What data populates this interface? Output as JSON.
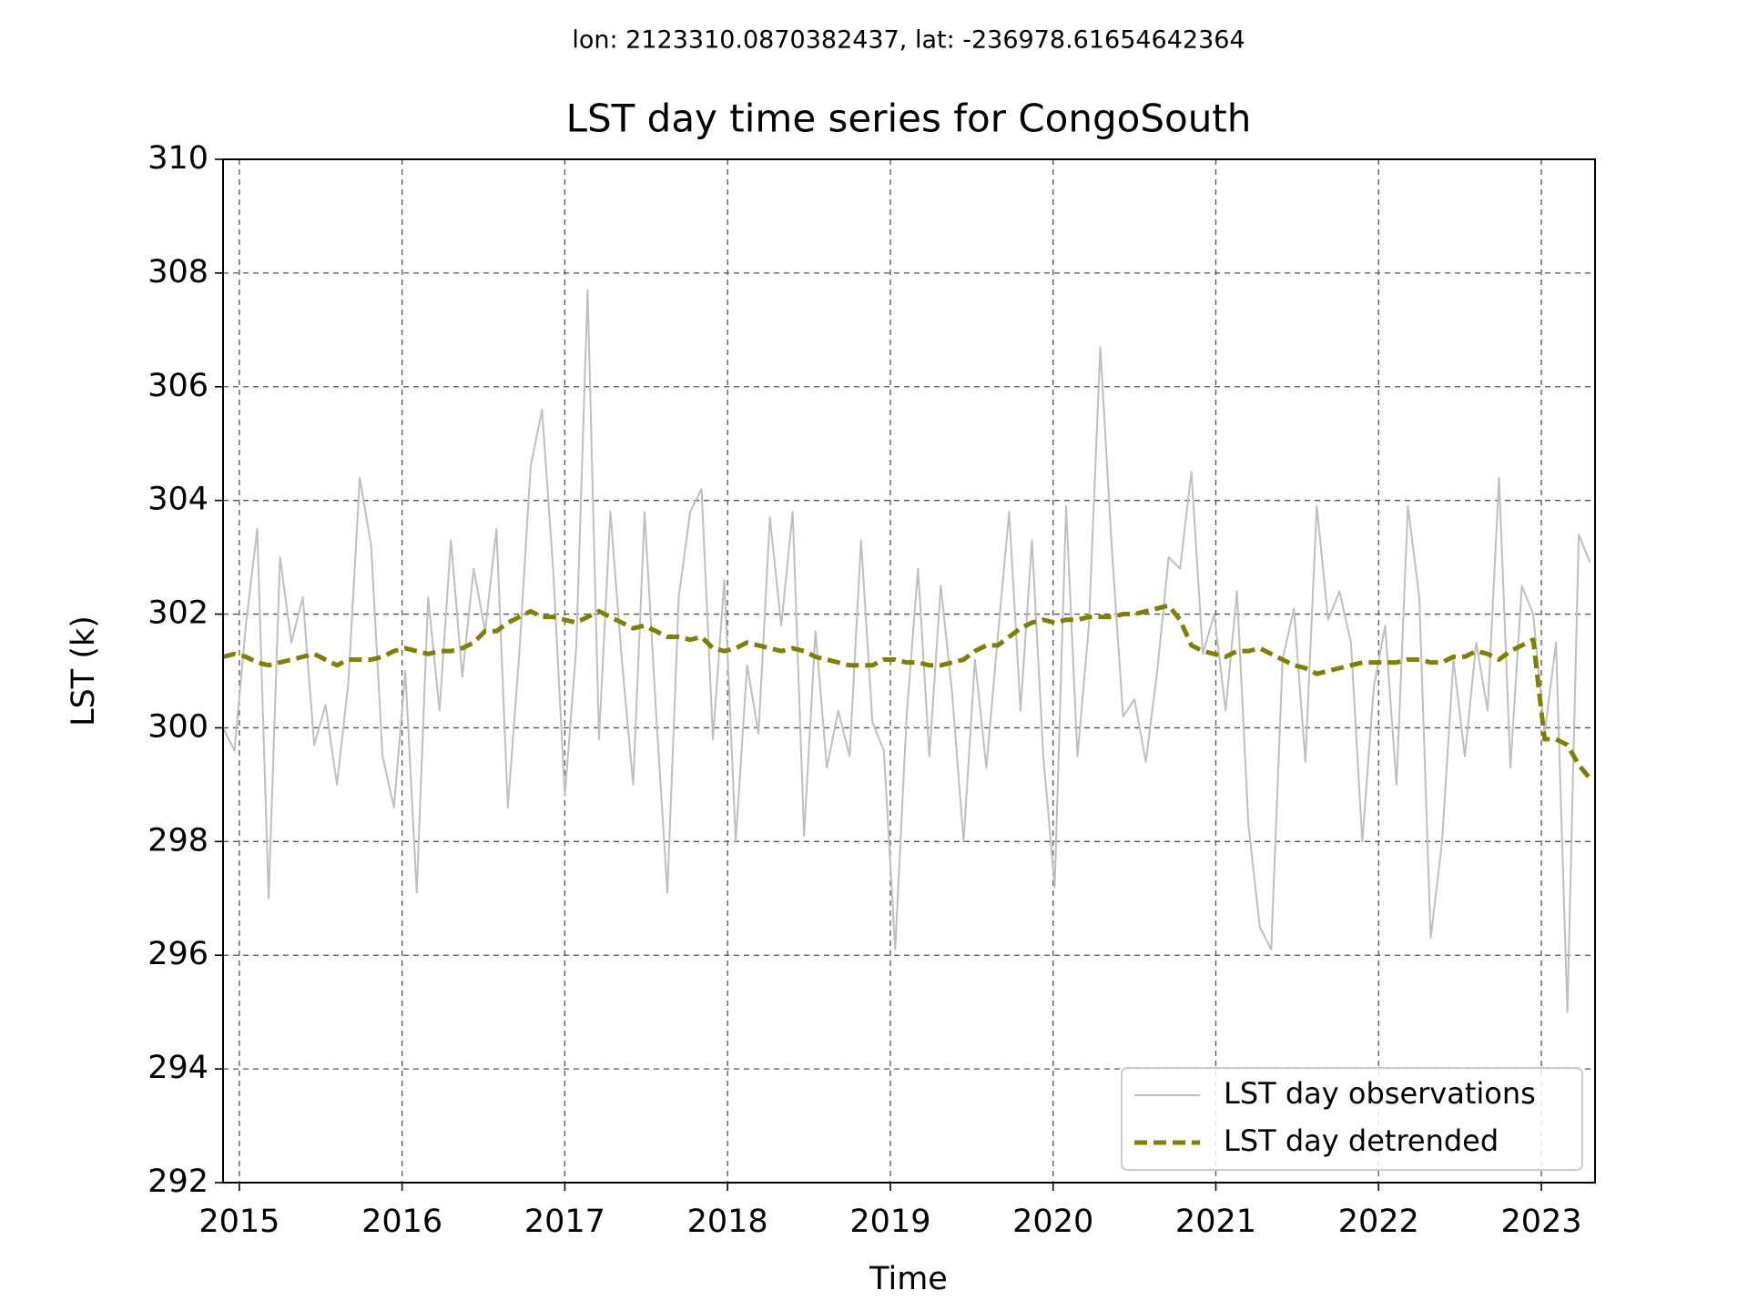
{
  "chart_data": {
    "type": "line",
    "subtitle": "lon: 2123310.0870382437, lat: -236978.61654642364",
    "title": "LST day time series for CongoSouth",
    "xlabel": "Time",
    "ylabel": "LST (k)",
    "xlim": [
      2014.9,
      2023.33
    ],
    "xticks": [
      2015,
      2016,
      2017,
      2018,
      2019,
      2020,
      2021,
      2022,
      2023
    ],
    "ylim": [
      292,
      310
    ],
    "yticks": [
      292,
      294,
      296,
      298,
      300,
      302,
      304,
      306,
      308,
      310
    ],
    "grid": true,
    "legend": "lower right",
    "x": [
      2014.9,
      2014.97,
      2015.04,
      2015.11,
      2015.18,
      2015.25,
      2015.32,
      2015.39,
      2015.46,
      2015.53,
      2015.6,
      2015.67,
      2015.74,
      2015.81,
      2015.88,
      2015.95,
      2016.02,
      2016.09,
      2016.16,
      2016.23,
      2016.3,
      2016.37,
      2016.44,
      2016.51,
      2016.58,
      2016.65,
      2016.72,
      2016.79,
      2016.86,
      2016.93,
      2017.0,
      2017.07,
      2017.14,
      2017.21,
      2017.28,
      2017.35,
      2017.42,
      2017.49,
      2017.56,
      2017.63,
      2017.7,
      2017.77,
      2017.84,
      2017.91,
      2017.98,
      2018.05,
      2018.12,
      2018.19,
      2018.26,
      2018.33,
      2018.4,
      2018.47,
      2018.54,
      2018.61,
      2018.68,
      2018.75,
      2018.82,
      2018.89,
      2018.96,
      2019.03,
      2019.1,
      2019.17,
      2019.24,
      2019.31,
      2019.38,
      2019.45,
      2019.52,
      2019.59,
      2019.66,
      2019.73,
      2019.8,
      2019.87,
      2019.94,
      2020.01,
      2020.08,
      2020.15,
      2020.22,
      2020.29,
      2020.36,
      2020.43,
      2020.5,
      2020.57,
      2020.64,
      2020.71,
      2020.78,
      2020.85,
      2020.92,
      2020.99,
      2021.06,
      2021.13,
      2021.2,
      2021.27,
      2021.34,
      2021.41,
      2021.48,
      2021.55,
      2021.62,
      2021.69,
      2021.76,
      2021.83,
      2021.9,
      2021.97,
      2022.04,
      2022.11,
      2022.18,
      2022.25,
      2022.32,
      2022.39,
      2022.46,
      2022.53,
      2022.6,
      2022.67,
      2022.74,
      2022.81,
      2022.88,
      2022.95,
      2023.02,
      2023.09,
      2023.16,
      2023.23,
      2023.3
    ],
    "series": [
      {
        "name": "LST day observations",
        "color": "#bfbfbf",
        "linestyle": "solid",
        "values": [
          300.0,
          299.6,
          301.8,
          303.5,
          297.0,
          303.0,
          301.5,
          302.3,
          299.7,
          300.4,
          299.0,
          300.8,
          304.4,
          303.2,
          299.5,
          298.6,
          301.0,
          297.1,
          302.3,
          300.3,
          303.3,
          300.9,
          302.8,
          301.7,
          303.5,
          298.6,
          301.3,
          304.6,
          305.6,
          302.7,
          298.8,
          301.4,
          307.7,
          299.8,
          303.8,
          301.2,
          299.0,
          303.8,
          300.3,
          297.1,
          302.3,
          303.8,
          304.2,
          299.8,
          302.6,
          298.0,
          301.1,
          299.9,
          303.7,
          301.8,
          303.8,
          298.1,
          301.7,
          299.3,
          300.3,
          299.5,
          303.3,
          300.1,
          299.6,
          296.1,
          300.2,
          302.8,
          299.5,
          302.5,
          300.6,
          298.0,
          301.2,
          299.3,
          301.6,
          303.8,
          300.3,
          303.3,
          299.5,
          297.2,
          303.9,
          299.5,
          301.8,
          306.7,
          303.2,
          300.2,
          300.5,
          299.4,
          301.0,
          303.0,
          302.8,
          304.5,
          301.3,
          302.0,
          300.3,
          302.4,
          298.3,
          296.5,
          296.1,
          301.2,
          302.1,
          299.4,
          303.9,
          301.9,
          302.4,
          301.5,
          298.0,
          300.7,
          301.8,
          299.0,
          303.9,
          302.3,
          296.3,
          298.0,
          301.2,
          299.5,
          301.5,
          300.3,
          304.4,
          299.3,
          302.5,
          302.0,
          299.9,
          301.5,
          295.0,
          303.4,
          302.9
        ]
      },
      {
        "name": "LST day detrended",
        "color": "#808000",
        "linestyle": "dashed",
        "values": [
          301.25,
          301.3,
          301.25,
          301.15,
          301.1,
          301.15,
          301.2,
          301.25,
          301.3,
          301.2,
          301.1,
          301.2,
          301.2,
          301.2,
          301.25,
          301.35,
          301.4,
          301.35,
          301.3,
          301.35,
          301.35,
          301.4,
          301.5,
          301.7,
          301.7,
          301.85,
          301.95,
          302.05,
          301.95,
          301.95,
          301.9,
          301.85,
          301.95,
          302.05,
          301.95,
          301.85,
          301.75,
          301.8,
          301.7,
          301.6,
          301.6,
          301.55,
          301.6,
          301.4,
          301.35,
          301.4,
          301.5,
          301.45,
          301.4,
          301.35,
          301.4,
          301.35,
          301.25,
          301.2,
          301.15,
          301.1,
          301.1,
          301.1,
          301.2,
          301.2,
          301.15,
          301.15,
          301.1,
          301.1,
          301.15,
          301.2,
          301.35,
          301.45,
          301.45,
          301.6,
          301.75,
          301.85,
          301.9,
          301.85,
          301.9,
          301.9,
          301.95,
          301.95,
          301.95,
          302.0,
          302.0,
          302.05,
          302.1,
          302.15,
          301.9,
          301.45,
          301.35,
          301.3,
          301.25,
          301.35,
          301.35,
          301.4,
          301.3,
          301.2,
          301.1,
          301.05,
          300.95,
          301.0,
          301.05,
          301.1,
          301.15,
          301.15,
          301.15,
          301.15,
          301.2,
          301.2,
          301.15,
          301.15,
          301.25,
          301.25,
          301.35,
          301.3,
          301.2,
          301.35,
          301.45,
          301.55,
          299.8,
          299.8,
          299.7,
          299.35,
          299.1
        ]
      }
    ]
  }
}
